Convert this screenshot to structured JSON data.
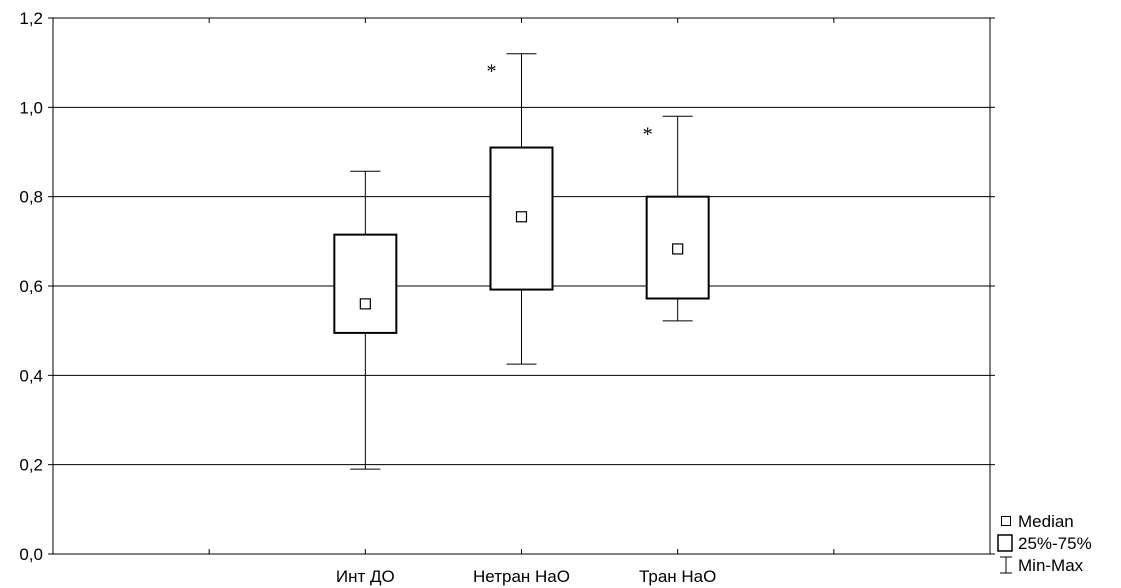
{
  "chart_data": {
    "type": "box",
    "title": "",
    "xlabel": "",
    "ylabel": "",
    "ylim": [
      0,
      1.2
    ],
    "yticks": [
      "0,0",
      "0,2",
      "0,4",
      "0,6",
      "0,8",
      "1,0",
      "1,2"
    ],
    "grid": true,
    "legend_position": "bottom-right",
    "categories": [
      "Инт ДО",
      "Нетран НаО",
      "Тран НаО"
    ],
    "boxes": [
      {
        "category": "Инт ДО",
        "min": 0.19,
        "q1": 0.495,
        "median": 0.56,
        "q3": 0.715,
        "max": 0.857,
        "annotation": ""
      },
      {
        "category": "Нетран НаО",
        "min": 0.425,
        "q1": 0.592,
        "median": 0.755,
        "q3": 0.91,
        "max": 1.12,
        "annotation": "*"
      },
      {
        "category": "Тран НаО",
        "min": 0.522,
        "q1": 0.572,
        "median": 0.683,
        "q3": 0.8,
        "max": 0.98,
        "annotation": "*"
      }
    ],
    "legend": [
      {
        "symbol": "median-square",
        "label": "Median"
      },
      {
        "symbol": "box",
        "label": "25%-75%"
      },
      {
        "symbol": "whisker",
        "label": "Min-Max"
      }
    ]
  }
}
